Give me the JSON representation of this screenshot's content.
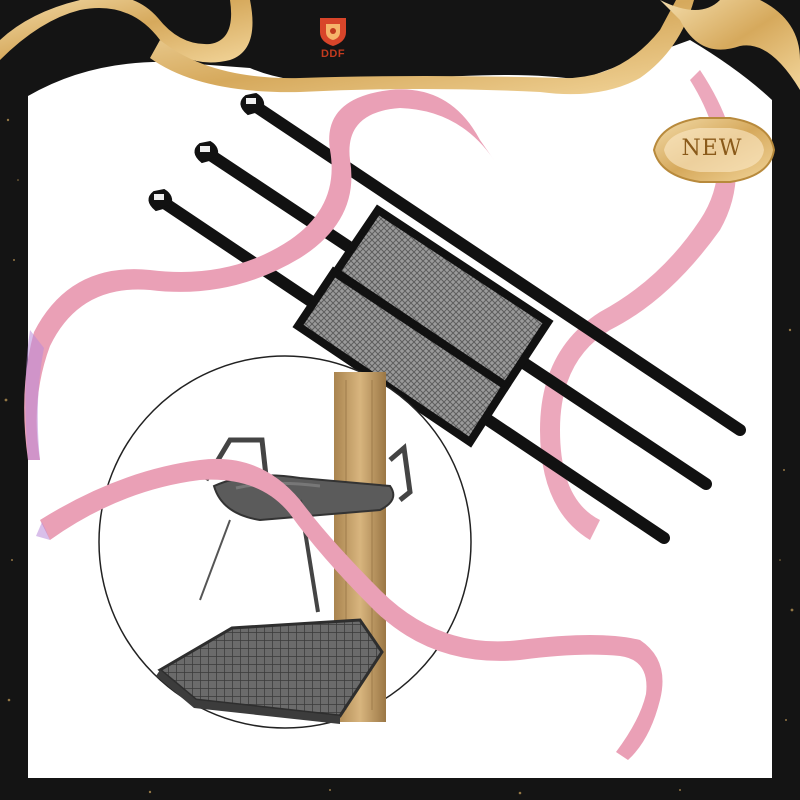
{
  "logo": {
    "brand": "DDF"
  },
  "badge": {
    "label": "NEW"
  },
  "colors": {
    "frame": "#151515",
    "background": "#ffffff",
    "ribbon": "#eaa0b6",
    "ribbon_shade": "#c67a93",
    "gold": "#d9b26a",
    "strap": "#111111",
    "mesh": "#8f8f8f",
    "metal": "#4a4a4a",
    "wood": "#c9a36a"
  }
}
